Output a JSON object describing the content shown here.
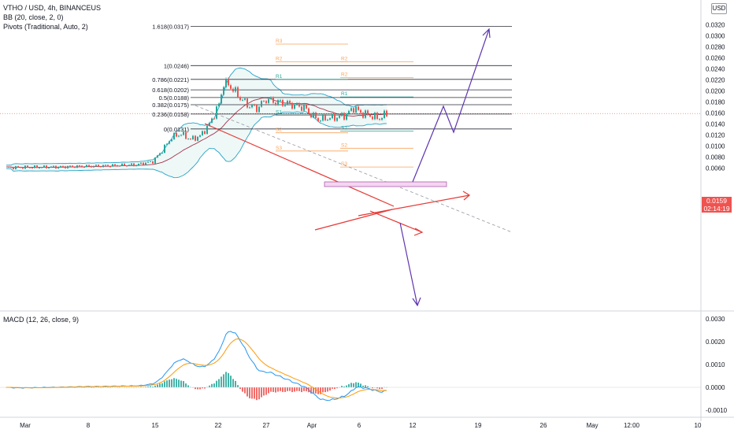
{
  "legend": {
    "symbol": "VTHO / USD, 4h, BINANCEUS",
    "bb": "BB (20, close, 2, 0)",
    "pivots": "Pivots (Traditional, Auto, 2)",
    "macd": "MACD (12, 26, close, 9)"
  },
  "currency": "USD",
  "price_badge": {
    "price": "0.0159",
    "countdown": "02:14:19"
  },
  "colors": {
    "up": "#26a69a",
    "down": "#ef5350",
    "bb_band": "#26a4c7",
    "bb_basis": "#a8324a",
    "fib": "#2a2e39",
    "pivot_orange": "#f7a35c",
    "pivot_green": "#26a69a",
    "trend_red": "#e53935",
    "projection": "#5e35b1",
    "macd_line": "#2196f3",
    "signal_line": "#ff9800"
  },
  "chart_data": {
    "type": "candlestick",
    "y_axis": {
      "ylim": [
        0.006,
        0.033
      ],
      "ticks": [
        "0.0320",
        "0.0300",
        "0.0280",
        "0.0260",
        "0.0240",
        "0.0220",
        "0.0200",
        "0.0180",
        "0.0160",
        "0.0140",
        "0.0120",
        "0.0100",
        "0.0080",
        "0.0060"
      ]
    },
    "x_axis": {
      "ticks": [
        "Mar",
        "8",
        "15",
        "22",
        "27",
        "Apr",
        "6",
        "12",
        "19",
        "26",
        "May",
        "12:00",
        "10"
      ]
    },
    "fib_levels": [
      {
        "label": "1.618(0.0317)",
        "value": 0.0317
      },
      {
        "label": "1(0.0246)",
        "value": 0.0246
      },
      {
        "label": "0.786(0.0221)",
        "value": 0.0221
      },
      {
        "label": "0.618(0.0202)",
        "value": 0.0202
      },
      {
        "label": "0.5(0.0188)",
        "value": 0.0188
      },
      {
        "label": "0.382(0.0175)",
        "value": 0.0175
      },
      {
        "label": "0.236(0.0158)",
        "value": 0.0158
      },
      {
        "label": "0(0.0131)",
        "value": 0.0131
      }
    ],
    "pivots_left": [
      {
        "label": "R3",
        "value": 0.0285,
        "color": "orange"
      },
      {
        "label": "R2",
        "value": 0.0253,
        "color": "orange"
      },
      {
        "label": "R1",
        "value": 0.0221,
        "color": "green"
      },
      {
        "label": "S1",
        "value": 0.0156,
        "color": "green"
      },
      {
        "label": "S2",
        "value": 0.0124,
        "color": "orange"
      },
      {
        "label": "S3",
        "value": 0.0091,
        "color": "orange"
      }
    ],
    "pivots_right": [
      {
        "label": "R2",
        "value": 0.0253,
        "color": "orange"
      },
      {
        "label": "R2",
        "value": 0.0224,
        "color": "orange"
      },
      {
        "label": "R1",
        "value": 0.0189,
        "color": "green"
      },
      {
        "label": "S1",
        "value": 0.0127,
        "color": "green"
      },
      {
        "label": "S2",
        "value": 0.0096,
        "color": "orange"
      },
      {
        "label": "S3",
        "value": 0.0062,
        "color": "orange"
      }
    ],
    "last_price": 0.0159,
    "macd": {
      "ylim": [
        -0.0012,
        0.0031
      ],
      "ticks": [
        "0.0030",
        "0.0020",
        "0.0010",
        "0.0000",
        "-0.0010"
      ]
    }
  }
}
